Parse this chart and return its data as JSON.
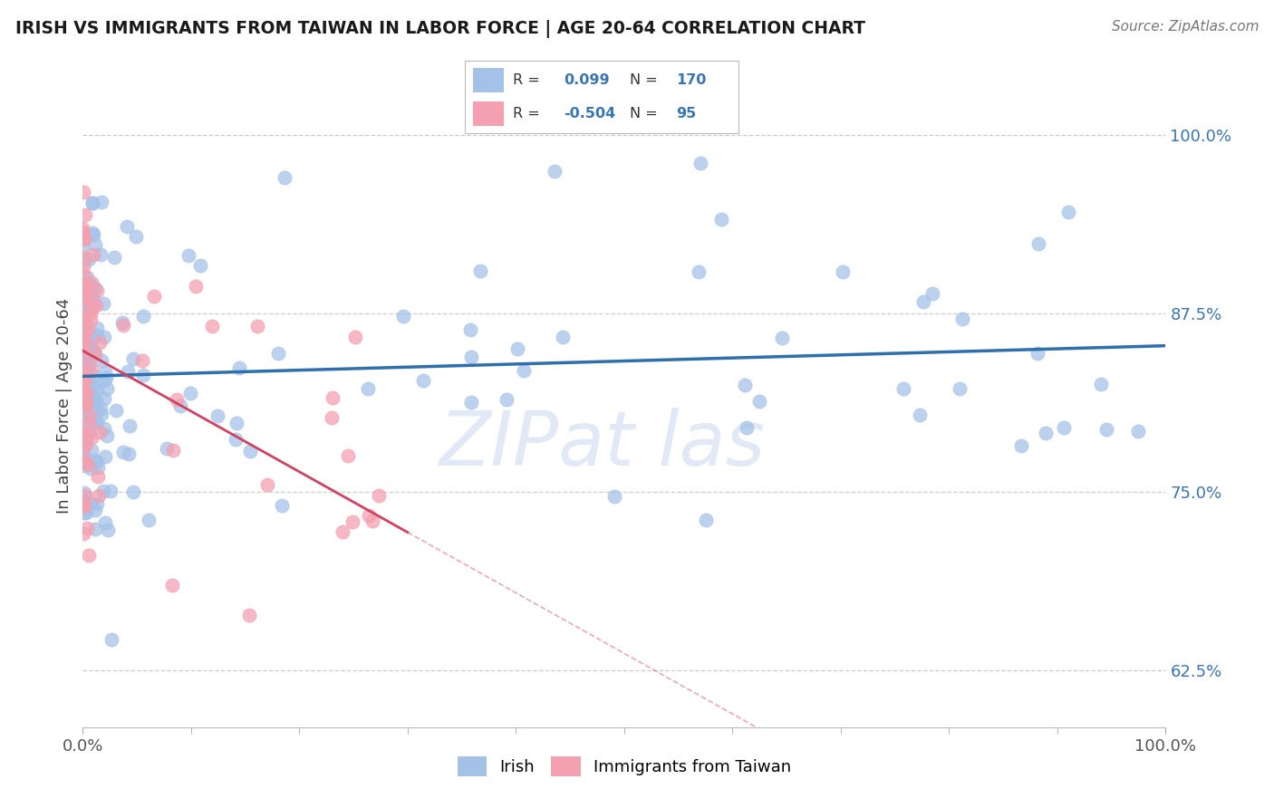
{
  "title": "IRISH VS IMMIGRANTS FROM TAIWAN IN LABOR FORCE | AGE 20-64 CORRELATION CHART",
  "source": "Source: ZipAtlas.com",
  "ylabel": "In Labor Force | Age 20-64",
  "xlim": [
    0.0,
    1.0
  ],
  "ylim": [
    0.585,
    1.035
  ],
  "yticks": [
    0.625,
    0.75,
    0.875,
    1.0
  ],
  "ytick_labels": [
    "62.5%",
    "75.0%",
    "87.5%",
    "100.0%"
  ],
  "xtick_labels": [
    "0.0%",
    "100.0%"
  ],
  "blue_dot_color": "#a4c2e8",
  "pink_dot_color": "#f4a0b0",
  "blue_line_color": "#2e6fad",
  "pink_line_color": "#d44060",
  "watermark": "ZIPat las",
  "irish_N": 170,
  "taiwan_N": 95,
  "irish_R": 0.099,
  "taiwan_R": -0.504
}
